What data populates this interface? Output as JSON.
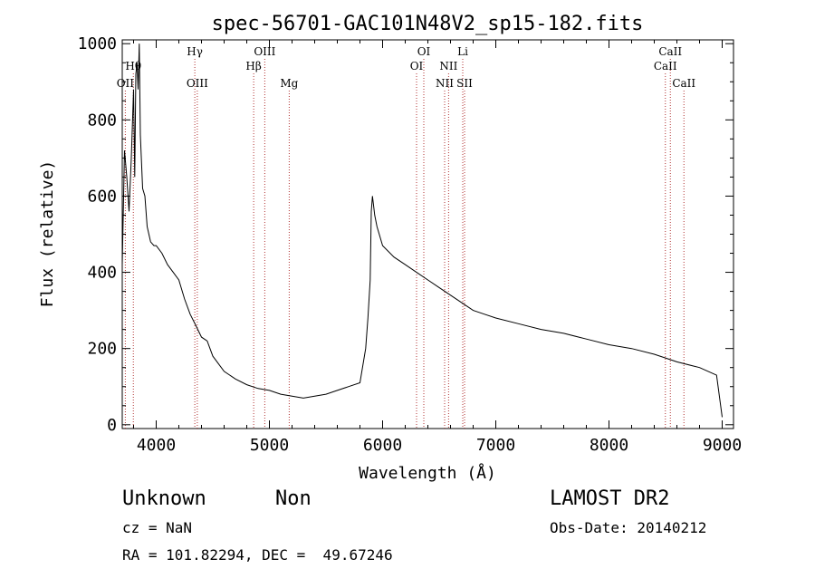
{
  "chart_data": {
    "type": "line",
    "title": "spec-56701-GAC101N48V2_sp15-182.fits",
    "xlabel": "Wavelength (Å)",
    "ylabel": "Flux (relative)",
    "xlim": [
      3700,
      9100
    ],
    "ylim": [
      -10,
      1010
    ],
    "xticks": [
      4000,
      5000,
      6000,
      7000,
      8000,
      9000
    ],
    "yticks": [
      0,
      200,
      400,
      600,
      800,
      1000
    ],
    "grid": false,
    "colors": {
      "spectrum": "#000000",
      "lines": "#b03030"
    },
    "series": [
      {
        "x": [
          3700,
          3720,
          3740,
          3760,
          3780,
          3800,
          3810,
          3820,
          3830,
          3840,
          3850,
          3860,
          3880,
          3900,
          3920,
          3950,
          3980,
          4000,
          4050,
          4100,
          4150,
          4200,
          4250,
          4300,
          4350,
          4400,
          4450,
          4500,
          4600,
          4700,
          4800,
          4900,
          5000,
          5100,
          5200,
          5300,
          5400,
          5500,
          5600,
          5700,
          5800,
          5850,
          5870,
          5890,
          5900,
          5910,
          5930,
          5950,
          6000,
          6100,
          6200,
          6300,
          6400,
          6500,
          6600,
          6700,
          6800,
          6900,
          7000,
          7200,
          7400,
          7600,
          7800,
          8000,
          8200,
          8400,
          8600,
          8800,
          8950,
          9000
        ],
        "y": [
          420,
          720,
          650,
          560,
          700,
          880,
          650,
          920,
          950,
          880,
          1000,
          760,
          620,
          600,
          520,
          480,
          470,
          470,
          450,
          420,
          400,
          380,
          330,
          290,
          260,
          230,
          220,
          180,
          140,
          120,
          105,
          95,
          90,
          80,
          75,
          70,
          75,
          80,
          90,
          100,
          110,
          200,
          280,
          380,
          560,
          600,
          550,
          520,
          470,
          440,
          420,
          400,
          380,
          360,
          340,
          320,
          300,
          290,
          280,
          265,
          250,
          240,
          225,
          210,
          200,
          185,
          165,
          150,
          130,
          20
        ]
      }
    ],
    "line_markers": [
      {
        "label": "Hθ",
        "wavelength": 3798,
        "row": 3
      },
      {
        "label": "OII",
        "wavelength": 3727,
        "row": 4
      },
      {
        "label": "Hγ",
        "wavelength": 4341,
        "row": 1
      },
      {
        "label": "OIII",
        "wavelength": 4363,
        "row": 4
      },
      {
        "label": "Hβ",
        "wavelength": 4861,
        "row": 3
      },
      {
        "label": "OIII",
        "wavelength": 4959,
        "row": 2
      },
      {
        "label": "Mg",
        "wavelength": 5175,
        "row": 4
      },
      {
        "label": "OI",
        "wavelength": 6364,
        "row": 2
      },
      {
        "label": "OI",
        "wavelength": 6300,
        "row": 3
      },
      {
        "label": "NII",
        "wavelength": 6583,
        "row": 3
      },
      {
        "label": "NII",
        "wavelength": 6548,
        "row": 4
      },
      {
        "label": "Li",
        "wavelength": 6708,
        "row": 2
      },
      {
        "label": "SII",
        "wavelength": 6724,
        "row": 4
      },
      {
        "label": "CaII",
        "wavelength": 8542,
        "row": 2
      },
      {
        "label": "CaII",
        "wavelength": 8498,
        "row": 3
      },
      {
        "label": "CaII",
        "wavelength": 8662,
        "row": 4
      }
    ]
  },
  "info": {
    "class": "Unknown",
    "subclass": "Non",
    "survey": "LAMOST DR2",
    "cz": "cz = NaN",
    "obs_date": "Obs-Date: 20140212",
    "coords": "RA = 101.82294, DEC =  49.67246"
  }
}
